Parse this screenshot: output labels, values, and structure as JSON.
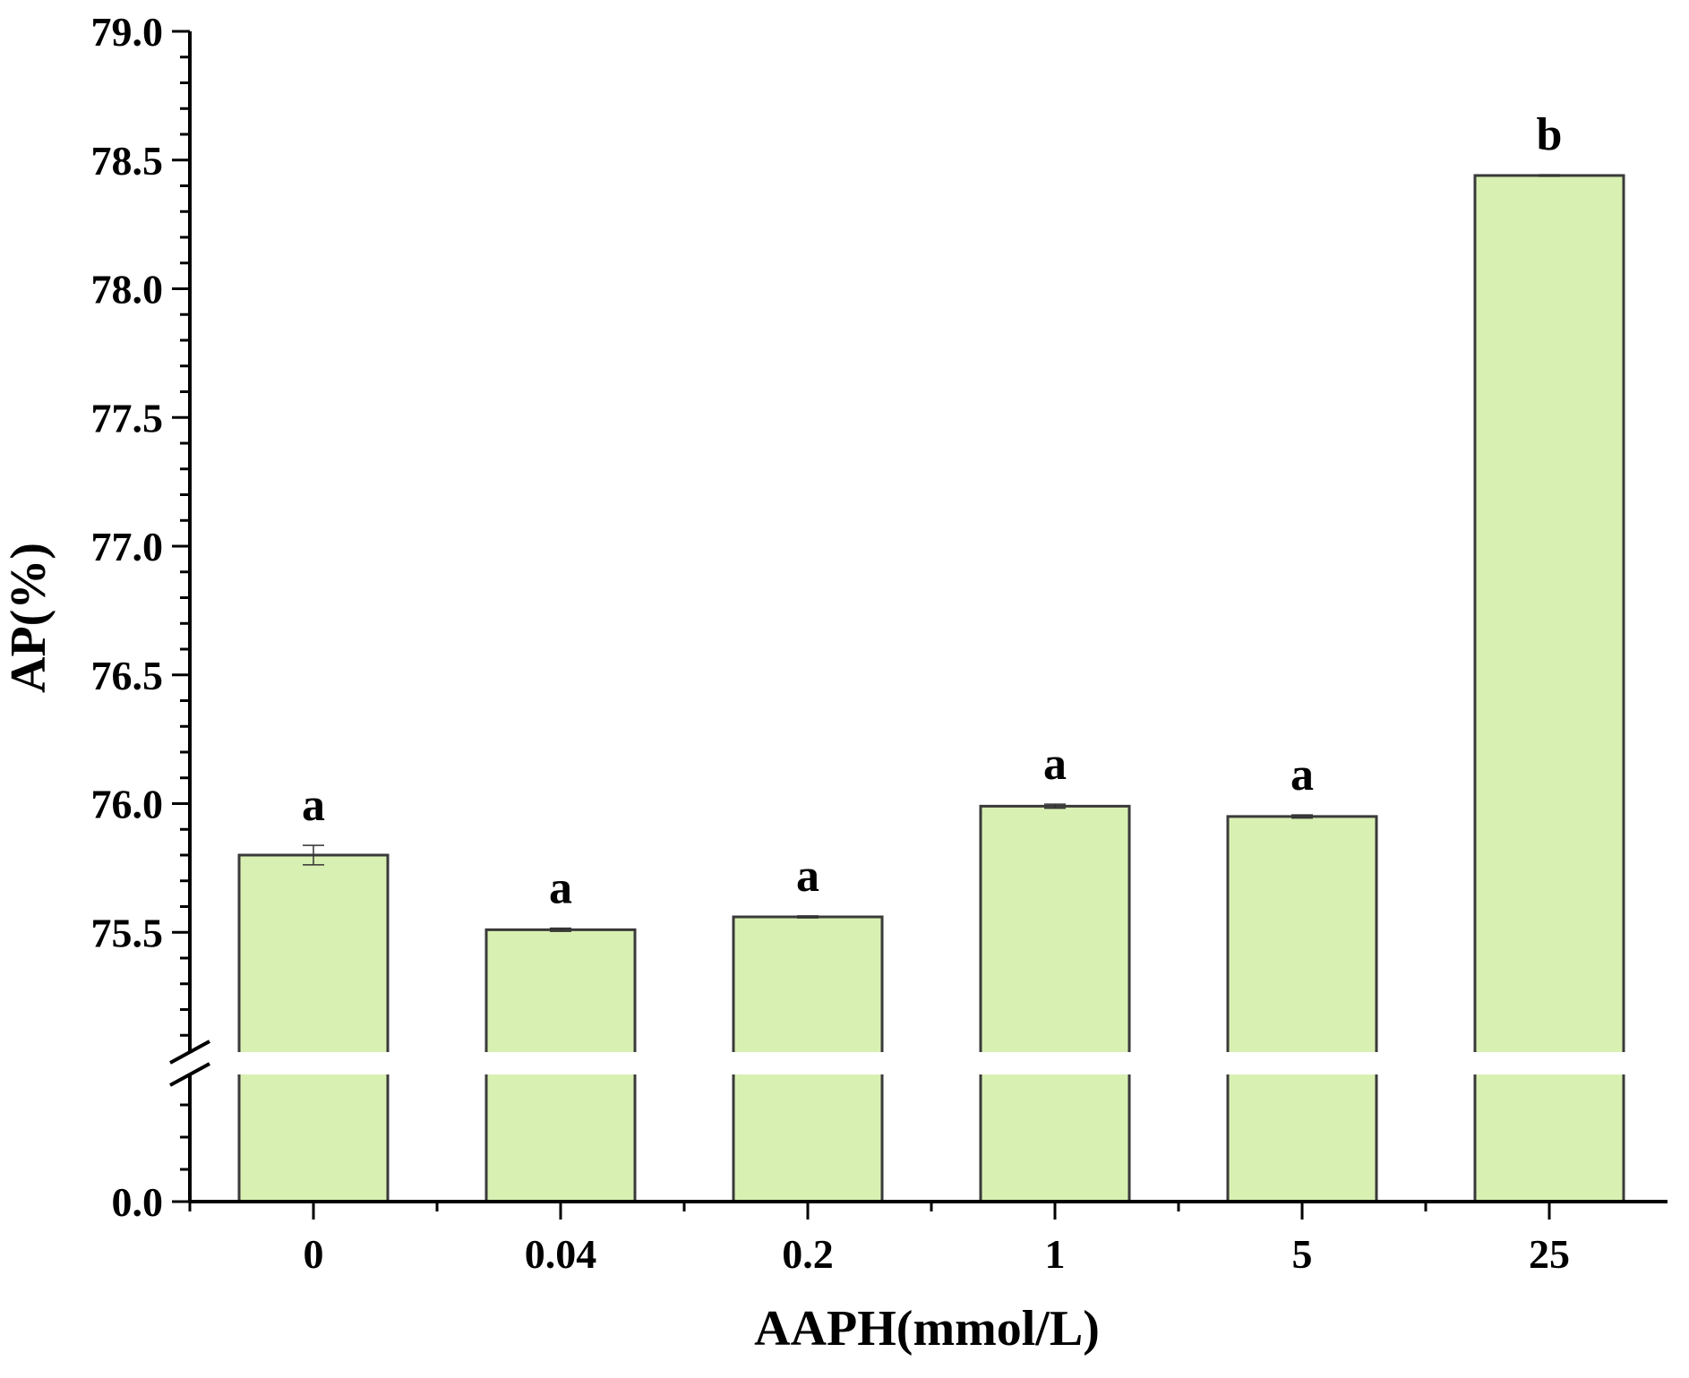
{
  "chart_data": {
    "type": "bar",
    "xlabel": "AAPH(mmol/L)",
    "ylabel": "AP(%)",
    "categories": [
      "0",
      "0.04",
      "0.2",
      "1",
      "5",
      "25"
    ],
    "values": [
      75.8,
      75.51,
      75.56,
      75.99,
      75.95,
      78.44
    ],
    "errors": [
      0.038,
      0.006,
      0.004,
      0.008,
      0.006,
      0.003
    ],
    "significance_letters": [
      "a",
      "a",
      "a",
      "a",
      "a",
      "b"
    ],
    "y_axis": {
      "break": true,
      "lower_segment": {
        "ylim": [
          0.0,
          0.0
        ],
        "tick_labels": [
          "0.0"
        ]
      },
      "upper_segment": {
        "ylim": [
          75.0,
          79.0
        ],
        "tick_labels": [
          "75.5",
          "76.0",
          "76.5",
          "77.0",
          "77.5",
          "78.0",
          "78.5",
          "79.0"
        ]
      }
    },
    "grid": false,
    "legend": "none",
    "colors": {
      "bar_fill": "#d9f0b3",
      "bar_stroke": "#3a3a3a",
      "axis": "#000000"
    }
  }
}
